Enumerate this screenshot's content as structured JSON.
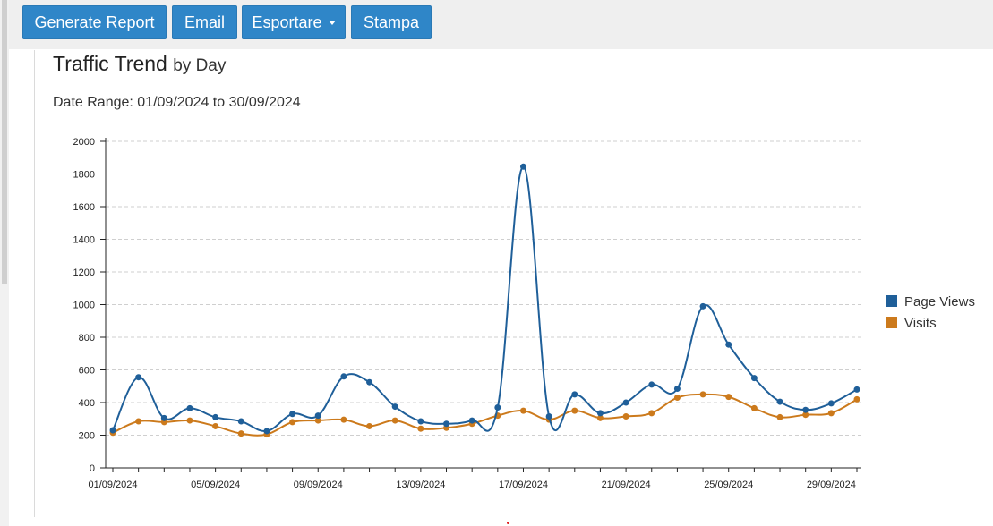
{
  "toolbar": {
    "generate_label": "Generate Report",
    "email_label": "Email",
    "export_label": "Esportare",
    "print_label": "Stampa"
  },
  "report": {
    "title": "Traffic Trend",
    "title_suffix": "by Day",
    "date_range": "Date Range: 01/09/2024 to 30/09/2024"
  },
  "colors": {
    "accent_button": "#2f86c8",
    "page_views": "#1f5f99",
    "visits": "#cc7a1c"
  },
  "chart_data": {
    "type": "line",
    "title": "",
    "xlabel": "",
    "ylabel": "",
    "ylim": [
      0,
      2000
    ],
    "yticks": [
      0,
      200,
      400,
      600,
      800,
      1000,
      1200,
      1400,
      1600,
      1800,
      2000
    ],
    "grid": "horizontal dashed",
    "legend": "right",
    "x_tick_labels": [
      "01/09/2024",
      "05/09/2024",
      "09/09/2024",
      "13/09/2024",
      "17/09/2024",
      "21/09/2024",
      "25/09/2024",
      "29/09/2024"
    ],
    "x": [
      "01/09/2024",
      "02/09/2024",
      "03/09/2024",
      "04/09/2024",
      "05/09/2024",
      "06/09/2024",
      "07/09/2024",
      "08/09/2024",
      "09/09/2024",
      "10/09/2024",
      "11/09/2024",
      "12/09/2024",
      "13/09/2024",
      "14/09/2024",
      "15/09/2024",
      "16/09/2024",
      "17/09/2024",
      "18/09/2024",
      "19/09/2024",
      "20/09/2024",
      "21/09/2024",
      "22/09/2024",
      "23/09/2024",
      "24/09/2024",
      "25/09/2024",
      "26/09/2024",
      "27/09/2024",
      "28/09/2024",
      "29/09/2024",
      "30/09/2024"
    ],
    "series": [
      {
        "name": "Page Views",
        "color": "#1f5f99",
        "values": [
          230,
          555,
          305,
          365,
          310,
          285,
          225,
          330,
          320,
          560,
          525,
          375,
          285,
          270,
          290,
          370,
          1845,
          315,
          450,
          335,
          400,
          510,
          485,
          990,
          755,
          550,
          405,
          355,
          395,
          480
        ]
      },
      {
        "name": "Visits",
        "color": "#cc7a1c",
        "values": [
          215,
          285,
          280,
          290,
          255,
          210,
          205,
          280,
          290,
          295,
          255,
          290,
          240,
          245,
          270,
          320,
          350,
          295,
          350,
          305,
          315,
          335,
          430,
          450,
          435,
          365,
          310,
          325,
          335,
          420
        ]
      }
    ]
  }
}
